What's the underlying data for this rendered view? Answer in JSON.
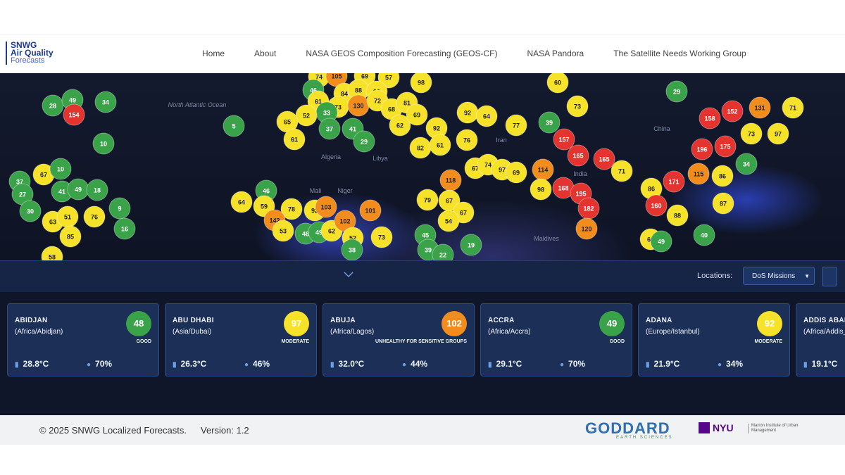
{
  "logo": {
    "line1": "SNWG",
    "line2": "Air Quality",
    "line3": "Forecasts"
  },
  "nav": [
    "Home",
    "About",
    "NASA GEOS Composition Forecasting (GEOS-CF)",
    "NASA Pandora",
    "The Satellite Needs Working Group"
  ],
  "map": {
    "labels": [
      "North Atlantic Ocean",
      "Algeria",
      "Libya",
      "Mali",
      "Niger",
      "Iran",
      "India",
      "China",
      "Maldives"
    ],
    "markers": [
      28,
      49,
      154,
      34,
      10,
      5,
      67,
      10,
      37,
      27,
      41,
      49,
      18,
      30,
      63,
      51,
      76,
      9,
      16,
      85,
      58,
      74,
      105,
      69,
      57,
      98,
      46,
      84,
      88,
      93,
      61,
      73,
      130,
      72,
      68,
      81,
      33,
      52,
      65,
      61,
      37,
      41,
      29,
      62,
      69,
      92,
      82,
      61,
      92,
      64,
      77,
      76,
      39,
      73,
      60,
      29,
      158,
      152,
      131,
      71,
      73,
      97,
      196,
      175,
      34,
      157,
      165,
      165,
      71,
      115,
      86,
      171,
      86,
      160,
      88,
      87,
      40,
      69,
      49,
      114,
      98,
      168,
      195,
      182,
      120,
      67,
      74,
      97,
      69,
      118,
      46,
      64,
      59,
      78,
      92,
      103,
      101,
      79,
      67,
      67,
      54,
      142,
      53,
      48,
      49,
      62,
      102,
      52,
      73,
      45,
      39,
      22,
      38,
      19
    ]
  },
  "toolbar": {
    "locations_label": "Locations:",
    "selected": "DoS Missions"
  },
  "cards": [
    {
      "city": "ABIDJAN",
      "zone": "(Africa/Abidjan)",
      "aqi": 48,
      "category": "GOOD",
      "temp": "28.8°C",
      "humidity": "70%"
    },
    {
      "city": "ABU DHABI",
      "zone": "(Asia/Dubai)",
      "aqi": 97,
      "category": "MODERATE",
      "temp": "26.3°C",
      "humidity": "46%"
    },
    {
      "city": "ABUJA",
      "zone": "(Africa/Lagos)",
      "aqi": 102,
      "category": "UNHEALTHY FOR SENSITIVE GROUPS",
      "temp": "32.0°C",
      "humidity": "44%"
    },
    {
      "city": "ACCRA",
      "zone": "(Africa/Accra)",
      "aqi": 49,
      "category": "GOOD",
      "temp": "29.1°C",
      "humidity": "70%"
    },
    {
      "city": "ADANA",
      "zone": "(Europe/Istanbul)",
      "aqi": 92,
      "category": "MODERATE",
      "temp": "21.9°C",
      "humidity": "34%"
    },
    {
      "city": "ADDIS ABABA",
      "zone": "(Africa/Addis_Ababa)",
      "temp": "19.1°C"
    }
  ],
  "footer": {
    "copyright": "© 2025 SNWG Localized Forecasts.",
    "version": "Version: 1.2",
    "goddard": "GODDARD",
    "goddard_sub": "EARTH SCIENCES",
    "nyu": "NYU",
    "marron": "Marron Institute of Urban Management"
  }
}
